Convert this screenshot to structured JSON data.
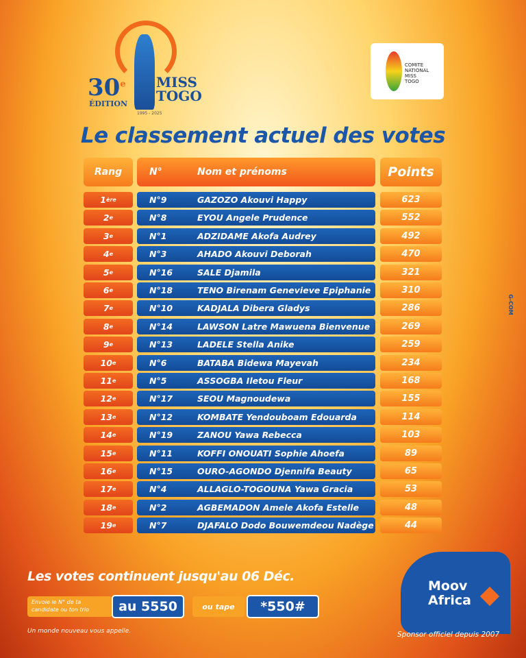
{
  "logo": {
    "edition_number": "30",
    "edition_sup": "e",
    "edition_word": "ÉDITION",
    "brand_line1": "MISS",
    "brand_line2": "TOGO",
    "years": "1995 - 2025"
  },
  "committee": {
    "line1": "COMITE",
    "line2": "NATIONAL",
    "line3": "MISS",
    "line4": "TOGO"
  },
  "title": "Le classement actuel des votes",
  "table": {
    "headers": {
      "rank": "Rang",
      "number": "N°",
      "name": "Nom et prénoms",
      "points": "Points"
    },
    "rows": [
      {
        "rank": "1",
        "suffix": "ère",
        "number": "N°9",
        "name": "GAZOZO Akouvi Happy",
        "points": 623
      },
      {
        "rank": "2",
        "suffix": "e",
        "number": "N°8",
        "name": "EYOU Angele Prudence",
        "points": 552
      },
      {
        "rank": "3",
        "suffix": "e",
        "number": "N°1",
        "name": "ADZIDAME Akofa Audrey",
        "points": 492
      },
      {
        "rank": "4",
        "suffix": "e",
        "number": "N°3",
        "name": "AHADO Akouvi Deborah",
        "points": 470
      },
      {
        "rank": "5",
        "suffix": "e",
        "number": "N°16",
        "name": "SALE Djamila",
        "points": 321
      },
      {
        "rank": "6",
        "suffix": "e",
        "number": "N°18",
        "name": "TENO Birenam Genevieve Epiphanie",
        "points": 310
      },
      {
        "rank": "7",
        "suffix": "e",
        "number": "N°10",
        "name": "KADJALA Dibera Gladys",
        "points": 286
      },
      {
        "rank": "8",
        "suffix": "e",
        "number": "N°14",
        "name": "LAWSON Latre Mawuena Bienvenue",
        "points": 269
      },
      {
        "rank": "9",
        "suffix": "e",
        "number": "N°13",
        "name": "LADELE Stella Anike",
        "points": 259
      },
      {
        "rank": "10",
        "suffix": "e",
        "number": "N°6",
        "name": "BATABA Bidewa Mayevah",
        "points": 234
      },
      {
        "rank": "11",
        "suffix": "e",
        "number": "N°5",
        "name": "ASSOGBA Iletou Fleur",
        "points": 168
      },
      {
        "rank": "12",
        "suffix": "e",
        "number": "N°17",
        "name": "SEOU Magnoudewa",
        "points": 155
      },
      {
        "rank": "13",
        "suffix": "e",
        "number": "N°12",
        "name": "KOMBATE Yendouboam Edouarda",
        "points": 114
      },
      {
        "rank": "14",
        "suffix": "e",
        "number": "N°19",
        "name": "ZANOU Yawa Rebecca",
        "points": 103
      },
      {
        "rank": "15",
        "suffix": "e",
        "number": "N°11",
        "name": "KOFFI ONOUATI Sophie Ahoefa",
        "points": 89
      },
      {
        "rank": "16",
        "suffix": "e",
        "number": "N°15",
        "name": "OURO-AGONDO Djennifa Beauty",
        "points": 65
      },
      {
        "rank": "17",
        "suffix": "e",
        "number": "N°4",
        "name": "ALLAGLO-TOGOUNA Yawa Gracia",
        "points": 53
      },
      {
        "rank": "18",
        "suffix": "e",
        "number": "N°2",
        "name": "AGBEMADON Amele Akofa Estelle",
        "points": 48
      },
      {
        "rank": "19",
        "suffix": "e",
        "number": "N°7",
        "name": "DJAFALO Dodo Bouwemdeou Nadège",
        "points": 44
      }
    ]
  },
  "footer": {
    "deadline": "Les votes continuent jusqu'au 06 Déc.",
    "instruction": "Envoie le N° de ta candidate ou ton trio",
    "sms": "au 5550",
    "or": "ou tape",
    "ussd": "*550#",
    "slogan": "Un monde nouveau vous appelle.",
    "sponsor_line1": "Moov",
    "sponsor_line2": "Africa",
    "sponsor_since": "Sponsor officiel depuis 2007",
    "agency": "G-COM"
  }
}
